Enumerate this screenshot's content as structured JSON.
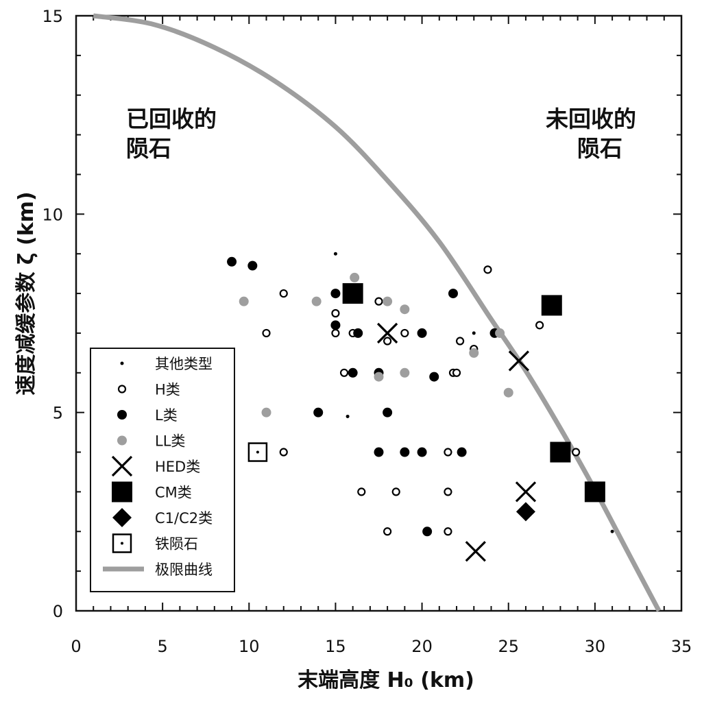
{
  "chart_data": {
    "type": "scatter",
    "xlabel": "末端高度 H₀ (km)",
    "ylabel": "速度减缓参数 ζ (km)",
    "xlim": [
      0,
      35
    ],
    "ylim": [
      0,
      15
    ],
    "xticks": [
      0,
      5,
      10,
      15,
      20,
      25,
      30,
      35
    ],
    "yticks": [
      0,
      5,
      10,
      15
    ],
    "region_labels": {
      "left": [
        "已回收的",
        "陨石"
      ],
      "right": [
        "未回收的",
        "陨石"
      ]
    },
    "legend_position": "lower-left",
    "series": [
      {
        "name": "其他类型",
        "marker": "dot",
        "color": "#000000",
        "points": [
          [
            15.0,
            9.0
          ],
          [
            15.7,
            4.9
          ],
          [
            23.0,
            7.0
          ],
          [
            31.0,
            2.0
          ]
        ]
      },
      {
        "name": "H类",
        "marker": "open-circle",
        "color": "#000000",
        "points": [
          [
            11.0,
            7.0
          ],
          [
            12.0,
            8.0
          ],
          [
            12.0,
            4.0
          ],
          [
            15.0,
            7.5
          ],
          [
            15.0,
            7.0
          ],
          [
            15.5,
            6.0
          ],
          [
            16.0,
            7.0
          ],
          [
            16.3,
            7.0
          ],
          [
            16.5,
            3.0
          ],
          [
            17.5,
            7.8
          ],
          [
            18.0,
            2.0
          ],
          [
            18.0,
            6.8
          ],
          [
            18.5,
            3.0
          ],
          [
            19.0,
            7.0
          ],
          [
            21.5,
            4.0
          ],
          [
            21.5,
            3.0
          ],
          [
            21.5,
            2.0
          ],
          [
            21.8,
            6.0
          ],
          [
            22.0,
            6.0
          ],
          [
            22.2,
            6.8
          ],
          [
            23.0,
            6.5
          ],
          [
            23.0,
            6.6
          ],
          [
            23.8,
            8.6
          ],
          [
            26.8,
            7.2
          ],
          [
            28.9,
            4.0
          ]
        ]
      },
      {
        "name": "L类",
        "marker": "filled-circle",
        "color": "#000000",
        "points": [
          [
            9.0,
            8.8
          ],
          [
            10.2,
            8.7
          ],
          [
            14.0,
            5.0
          ],
          [
            15.0,
            8.0
          ],
          [
            15.0,
            7.2
          ],
          [
            16.0,
            6.0
          ],
          [
            16.3,
            7.0
          ],
          [
            17.5,
            4.0
          ],
          [
            17.5,
            6.0
          ],
          [
            18.0,
            5.0
          ],
          [
            19.0,
            4.0
          ],
          [
            20.0,
            7.0
          ],
          [
            20.0,
            4.0
          ],
          [
            20.3,
            2.0
          ],
          [
            20.7,
            5.9
          ],
          [
            21.8,
            8.0
          ],
          [
            22.3,
            4.0
          ],
          [
            24.2,
            7.0
          ]
        ]
      },
      {
        "name": "LL类",
        "marker": "filled-circle",
        "color": "#9e9e9e",
        "points": [
          [
            9.7,
            7.8
          ],
          [
            11.0,
            5.0
          ],
          [
            13.9,
            7.8
          ],
          [
            16.1,
            8.4
          ],
          [
            17.5,
            5.9
          ],
          [
            18.0,
            7.8
          ],
          [
            19.0,
            7.6
          ],
          [
            19.0,
            6.0
          ],
          [
            23.0,
            6.5
          ],
          [
            24.5,
            7.0
          ],
          [
            25.0,
            5.5
          ]
        ]
      },
      {
        "name": "HED类",
        "marker": "cross",
        "color": "#000000",
        "points": [
          [
            18.0,
            7.0
          ],
          [
            25.6,
            6.3
          ],
          [
            26.0,
            3.0
          ],
          [
            23.1,
            1.5
          ]
        ]
      },
      {
        "name": "CM类",
        "marker": "filled-square",
        "color": "#000000",
        "points": [
          [
            16.0,
            8.0
          ],
          [
            27.5,
            7.7
          ],
          [
            28.0,
            4.0
          ],
          [
            30.0,
            3.0
          ]
        ]
      },
      {
        "name": "C1/C2类",
        "marker": "filled-diamond",
        "color": "#000000",
        "points": [
          [
            26.0,
            2.5
          ]
        ]
      },
      {
        "name": "铁陨石",
        "marker": "open-square-dot",
        "color": "#000000",
        "points": [
          [
            10.5,
            4.0
          ]
        ]
      }
    ],
    "limit_curve": {
      "name": "极限曲线",
      "color": "#9e9e9e",
      "x": [
        1.0,
        4.5,
        8.0,
        11.5,
        15.0,
        18.0,
        21.0,
        24.0,
        26.0,
        28.0,
        30.0,
        32.0,
        33.7
      ],
      "y": [
        15.0,
        14.78,
        14.2,
        13.35,
        12.2,
        10.85,
        9.3,
        7.35,
        6.05,
        4.6,
        3.05,
        1.4,
        0.0
      ]
    }
  }
}
